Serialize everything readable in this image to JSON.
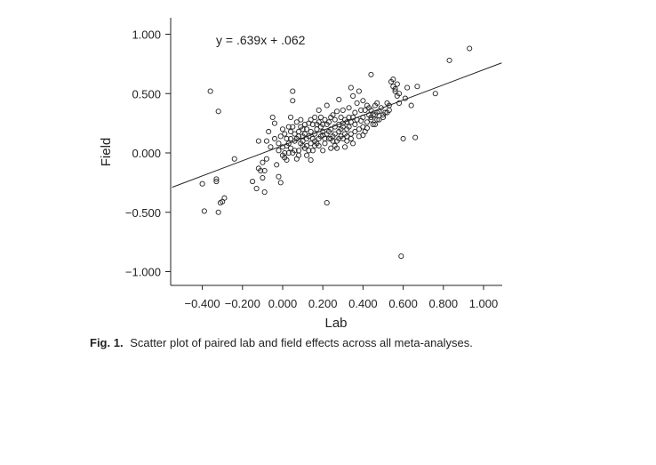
{
  "chart_data": {
    "type": "scatter",
    "xlabel": "Lab",
    "ylabel": "Field",
    "xlim": [
      -0.5,
      1.1
    ],
    "ylim": [
      -1.1,
      1.1
    ],
    "xticks": [
      -0.4,
      -0.2,
      0.0,
      0.2,
      0.4,
      0.6,
      0.8,
      1.0
    ],
    "xtick_labels": [
      "−0.400",
      "−0.200",
      "0.000",
      "0.200",
      "0.400",
      "0.600",
      "0.800",
      "1.000"
    ],
    "yticks": [
      1.0,
      0.5,
      0.0,
      -0.5,
      -1.0
    ],
    "ytick_labels": [
      "1.000",
      "0.500",
      "0.000",
      "−0.500",
      "−1.000"
    ],
    "annotation": "y = .639x + .062",
    "fit_line": {
      "slope": 0.639,
      "intercept": 0.062
    },
    "grid": false,
    "points": [
      [
        -0.36,
        0.52
      ],
      [
        -0.32,
        0.35
      ],
      [
        -0.4,
        -0.26
      ],
      [
        -0.39,
        -0.49
      ],
      [
        -0.33,
        -0.22
      ],
      [
        -0.33,
        -0.24
      ],
      [
        -0.32,
        -0.5
      ],
      [
        -0.31,
        -0.42
      ],
      [
        -0.29,
        -0.38
      ],
      [
        -0.3,
        -0.41
      ],
      [
        -0.24,
        -0.05
      ],
      [
        -0.15,
        -0.24
      ],
      [
        -0.13,
        -0.3
      ],
      [
        -0.12,
        -0.13
      ],
      [
        -0.11,
        -0.15
      ],
      [
        -0.1,
        -0.21
      ],
      [
        -0.09,
        -0.33
      ],
      [
        -0.09,
        -0.15
      ],
      [
        -0.1,
        -0.08
      ],
      [
        -0.08,
        -0.05
      ],
      [
        -0.12,
        0.1
      ],
      [
        -0.08,
        0.1
      ],
      [
        -0.05,
        0.3
      ],
      [
        -0.04,
        0.25
      ],
      [
        -0.03,
        -0.1
      ],
      [
        -0.02,
        -0.2
      ],
      [
        -0.01,
        -0.25
      ],
      [
        0.0,
        0.05
      ],
      [
        0.01,
        -0.04
      ],
      [
        0.01,
        0.0
      ],
      [
        0.02,
        0.12
      ],
      [
        0.03,
        0.08
      ],
      [
        0.04,
        0.18
      ],
      [
        0.04,
        0.3
      ],
      [
        0.05,
        0.52
      ],
      [
        0.05,
        0.44
      ],
      [
        0.06,
        0.02
      ],
      [
        0.07,
        -0.05
      ],
      [
        0.08,
        0.14
      ],
      [
        0.09,
        0.22
      ],
      [
        0.1,
        0.1
      ],
      [
        0.11,
        0.04
      ],
      [
        0.12,
        -0.02
      ],
      [
        0.13,
        0.25
      ],
      [
        0.14,
        0.18
      ],
      [
        0.15,
        0.12
      ],
      [
        0.16,
        0.3
      ],
      [
        0.17,
        0.08
      ],
      [
        0.18,
        0.36
      ],
      [
        0.19,
        0.22
      ],
      [
        0.2,
        0.15
      ],
      [
        0.2,
        0.02
      ],
      [
        0.21,
        0.28
      ],
      [
        0.22,
        -0.42
      ],
      [
        0.22,
        0.4
      ],
      [
        0.23,
        0.18
      ],
      [
        0.24,
        0.3
      ],
      [
        0.25,
        0.1
      ],
      [
        0.26,
        0.22
      ],
      [
        0.27,
        0.35
      ],
      [
        0.28,
        0.45
      ],
      [
        0.29,
        0.14
      ],
      [
        0.3,
        0.25
      ],
      [
        0.31,
        0.05
      ],
      [
        0.32,
        0.2
      ],
      [
        0.33,
        0.38
      ],
      [
        0.34,
        0.55
      ],
      [
        0.35,
        0.3
      ],
      [
        0.36,
        0.18
      ],
      [
        0.37,
        0.42
      ],
      [
        0.38,
        0.52
      ],
      [
        0.39,
        0.27
      ],
      [
        0.4,
        0.15
      ],
      [
        0.41,
        0.36
      ],
      [
        0.42,
        0.21
      ],
      [
        0.43,
        0.38
      ],
      [
        0.44,
        0.66
      ],
      [
        0.45,
        0.32
      ],
      [
        0.46,
        0.4
      ],
      [
        0.47,
        0.28
      ],
      [
        0.48,
        0.35
      ],
      [
        0.5,
        0.32
      ],
      [
        0.52,
        0.42
      ],
      [
        0.53,
        0.36
      ],
      [
        0.54,
        0.6
      ],
      [
        0.55,
        0.56
      ],
      [
        0.56,
        0.52
      ],
      [
        0.57,
        0.48
      ],
      [
        0.58,
        0.42
      ],
      [
        0.59,
        -0.87
      ],
      [
        0.6,
        0.12
      ],
      [
        0.61,
        0.46
      ],
      [
        0.62,
        0.55
      ],
      [
        0.64,
        0.4
      ],
      [
        0.66,
        0.13
      ],
      [
        0.67,
        0.56
      ],
      [
        0.76,
        0.5
      ],
      [
        0.83,
        0.78
      ],
      [
        0.93,
        0.88
      ],
      [
        -0.06,
        0.05
      ],
      [
        -0.04,
        0.12
      ],
      [
        -0.01,
        0.14
      ],
      [
        0.02,
        0.06
      ],
      [
        0.03,
        0.22
      ],
      [
        0.05,
        0.0
      ],
      [
        0.06,
        0.16
      ],
      [
        0.07,
        0.26
      ],
      [
        0.08,
        0.02
      ],
      [
        0.09,
        0.08
      ],
      [
        0.1,
        0.2
      ],
      [
        0.11,
        0.16
      ],
      [
        0.12,
        0.06
      ],
      [
        0.13,
        0.02
      ],
      [
        0.14,
        0.28
      ],
      [
        0.15,
        0.24
      ],
      [
        0.16,
        0.1
      ],
      [
        0.17,
        0.2
      ],
      [
        0.18,
        0.06
      ],
      [
        0.19,
        0.14
      ],
      [
        0.21,
        0.08
      ],
      [
        0.22,
        0.24
      ],
      [
        0.23,
        0.12
      ],
      [
        0.24,
        0.04
      ],
      [
        0.25,
        0.32
      ],
      [
        0.26,
        0.16
      ],
      [
        0.27,
        0.1
      ],
      [
        0.28,
        0.24
      ],
      [
        0.29,
        0.2
      ],
      [
        0.3,
        0.12
      ],
      [
        0.31,
        0.28
      ],
      [
        0.32,
        0.1
      ],
      [
        0.33,
        0.22
      ],
      [
        0.34,
        0.16
      ],
      [
        0.35,
        0.08
      ],
      [
        0.36,
        0.24
      ],
      [
        0.38,
        0.2
      ],
      [
        0.4,
        0.3
      ],
      [
        0.42,
        0.26
      ],
      [
        0.44,
        0.3
      ],
      [
        0.46,
        0.24
      ],
      [
        0.48,
        0.28
      ],
      [
        0.0,
        0.2
      ],
      [
        0.02,
        -0.06
      ],
      [
        0.04,
        0.04
      ],
      [
        0.06,
        0.1
      ],
      [
        0.08,
        -0.02
      ],
      [
        0.1,
        0.06
      ],
      [
        0.12,
        0.12
      ],
      [
        0.14,
        0.08
      ],
      [
        0.16,
        0.16
      ],
      [
        0.18,
        0.12
      ],
      [
        0.2,
        0.18
      ],
      [
        0.22,
        0.16
      ],
      [
        0.24,
        0.2
      ],
      [
        0.26,
        0.06
      ],
      [
        0.28,
        0.18
      ],
      [
        0.3,
        0.22
      ],
      [
        0.32,
        0.14
      ],
      [
        0.34,
        0.26
      ],
      [
        0.36,
        0.34
      ],
      [
        0.38,
        0.14
      ],
      [
        0.4,
        0.22
      ],
      [
        0.41,
        0.18
      ],
      [
        0.43,
        0.32
      ],
      [
        0.45,
        0.24
      ],
      [
        0.47,
        0.34
      ],
      [
        0.49,
        0.38
      ],
      [
        0.51,
        0.34
      ],
      [
        0.53,
        0.4
      ],
      [
        0.55,
        0.62
      ],
      [
        0.57,
        0.58
      ],
      [
        -0.02,
        0.08
      ],
      [
        0.01,
        0.16
      ],
      [
        0.03,
        0.0
      ],
      [
        0.05,
        0.22
      ],
      [
        0.07,
        0.12
      ],
      [
        0.09,
        0.28
      ],
      [
        0.11,
        0.24
      ],
      [
        0.13,
        0.14
      ],
      [
        0.15,
        0.02
      ],
      [
        0.17,
        0.24
      ],
      [
        0.19,
        0.3
      ],
      [
        0.21,
        0.12
      ],
      [
        0.23,
        0.26
      ],
      [
        0.25,
        0.14
      ],
      [
        0.27,
        0.04
      ],
      [
        0.29,
        0.3
      ],
      [
        0.31,
        0.16
      ],
      [
        0.33,
        0.3
      ],
      [
        0.35,
        0.48
      ],
      [
        0.37,
        0.28
      ],
      [
        0.39,
        0.36
      ],
      [
        0.42,
        0.4
      ],
      [
        0.44,
        0.36
      ],
      [
        0.46,
        0.32
      ],
      [
        -0.07,
        0.18
      ],
      [
        -0.02,
        0.02
      ],
      [
        0.0,
        -0.02
      ],
      [
        0.04,
        0.12
      ],
      [
        0.08,
        0.18
      ],
      [
        0.1,
        0.14
      ],
      [
        0.12,
        0.2
      ],
      [
        0.14,
        -0.06
      ],
      [
        0.16,
        0.06
      ],
      [
        0.18,
        0.26
      ],
      [
        0.2,
        0.24
      ],
      [
        0.24,
        0.12
      ],
      [
        0.26,
        0.28
      ],
      [
        0.28,
        0.12
      ],
      [
        0.3,
        0.36
      ],
      [
        0.32,
        0.26
      ],
      [
        0.34,
        0.12
      ],
      [
        0.4,
        0.44
      ],
      [
        0.44,
        0.28
      ],
      [
        0.47,
        0.42
      ],
      [
        0.5,
        0.3
      ],
      [
        0.52,
        0.34
      ],
      [
        0.56,
        0.54
      ],
      [
        0.58,
        0.5
      ]
    ]
  },
  "caption": {
    "fig_label": "Fig. 1.",
    "text": "Scatter plot of paired lab and field effects across all meta-analyses."
  }
}
